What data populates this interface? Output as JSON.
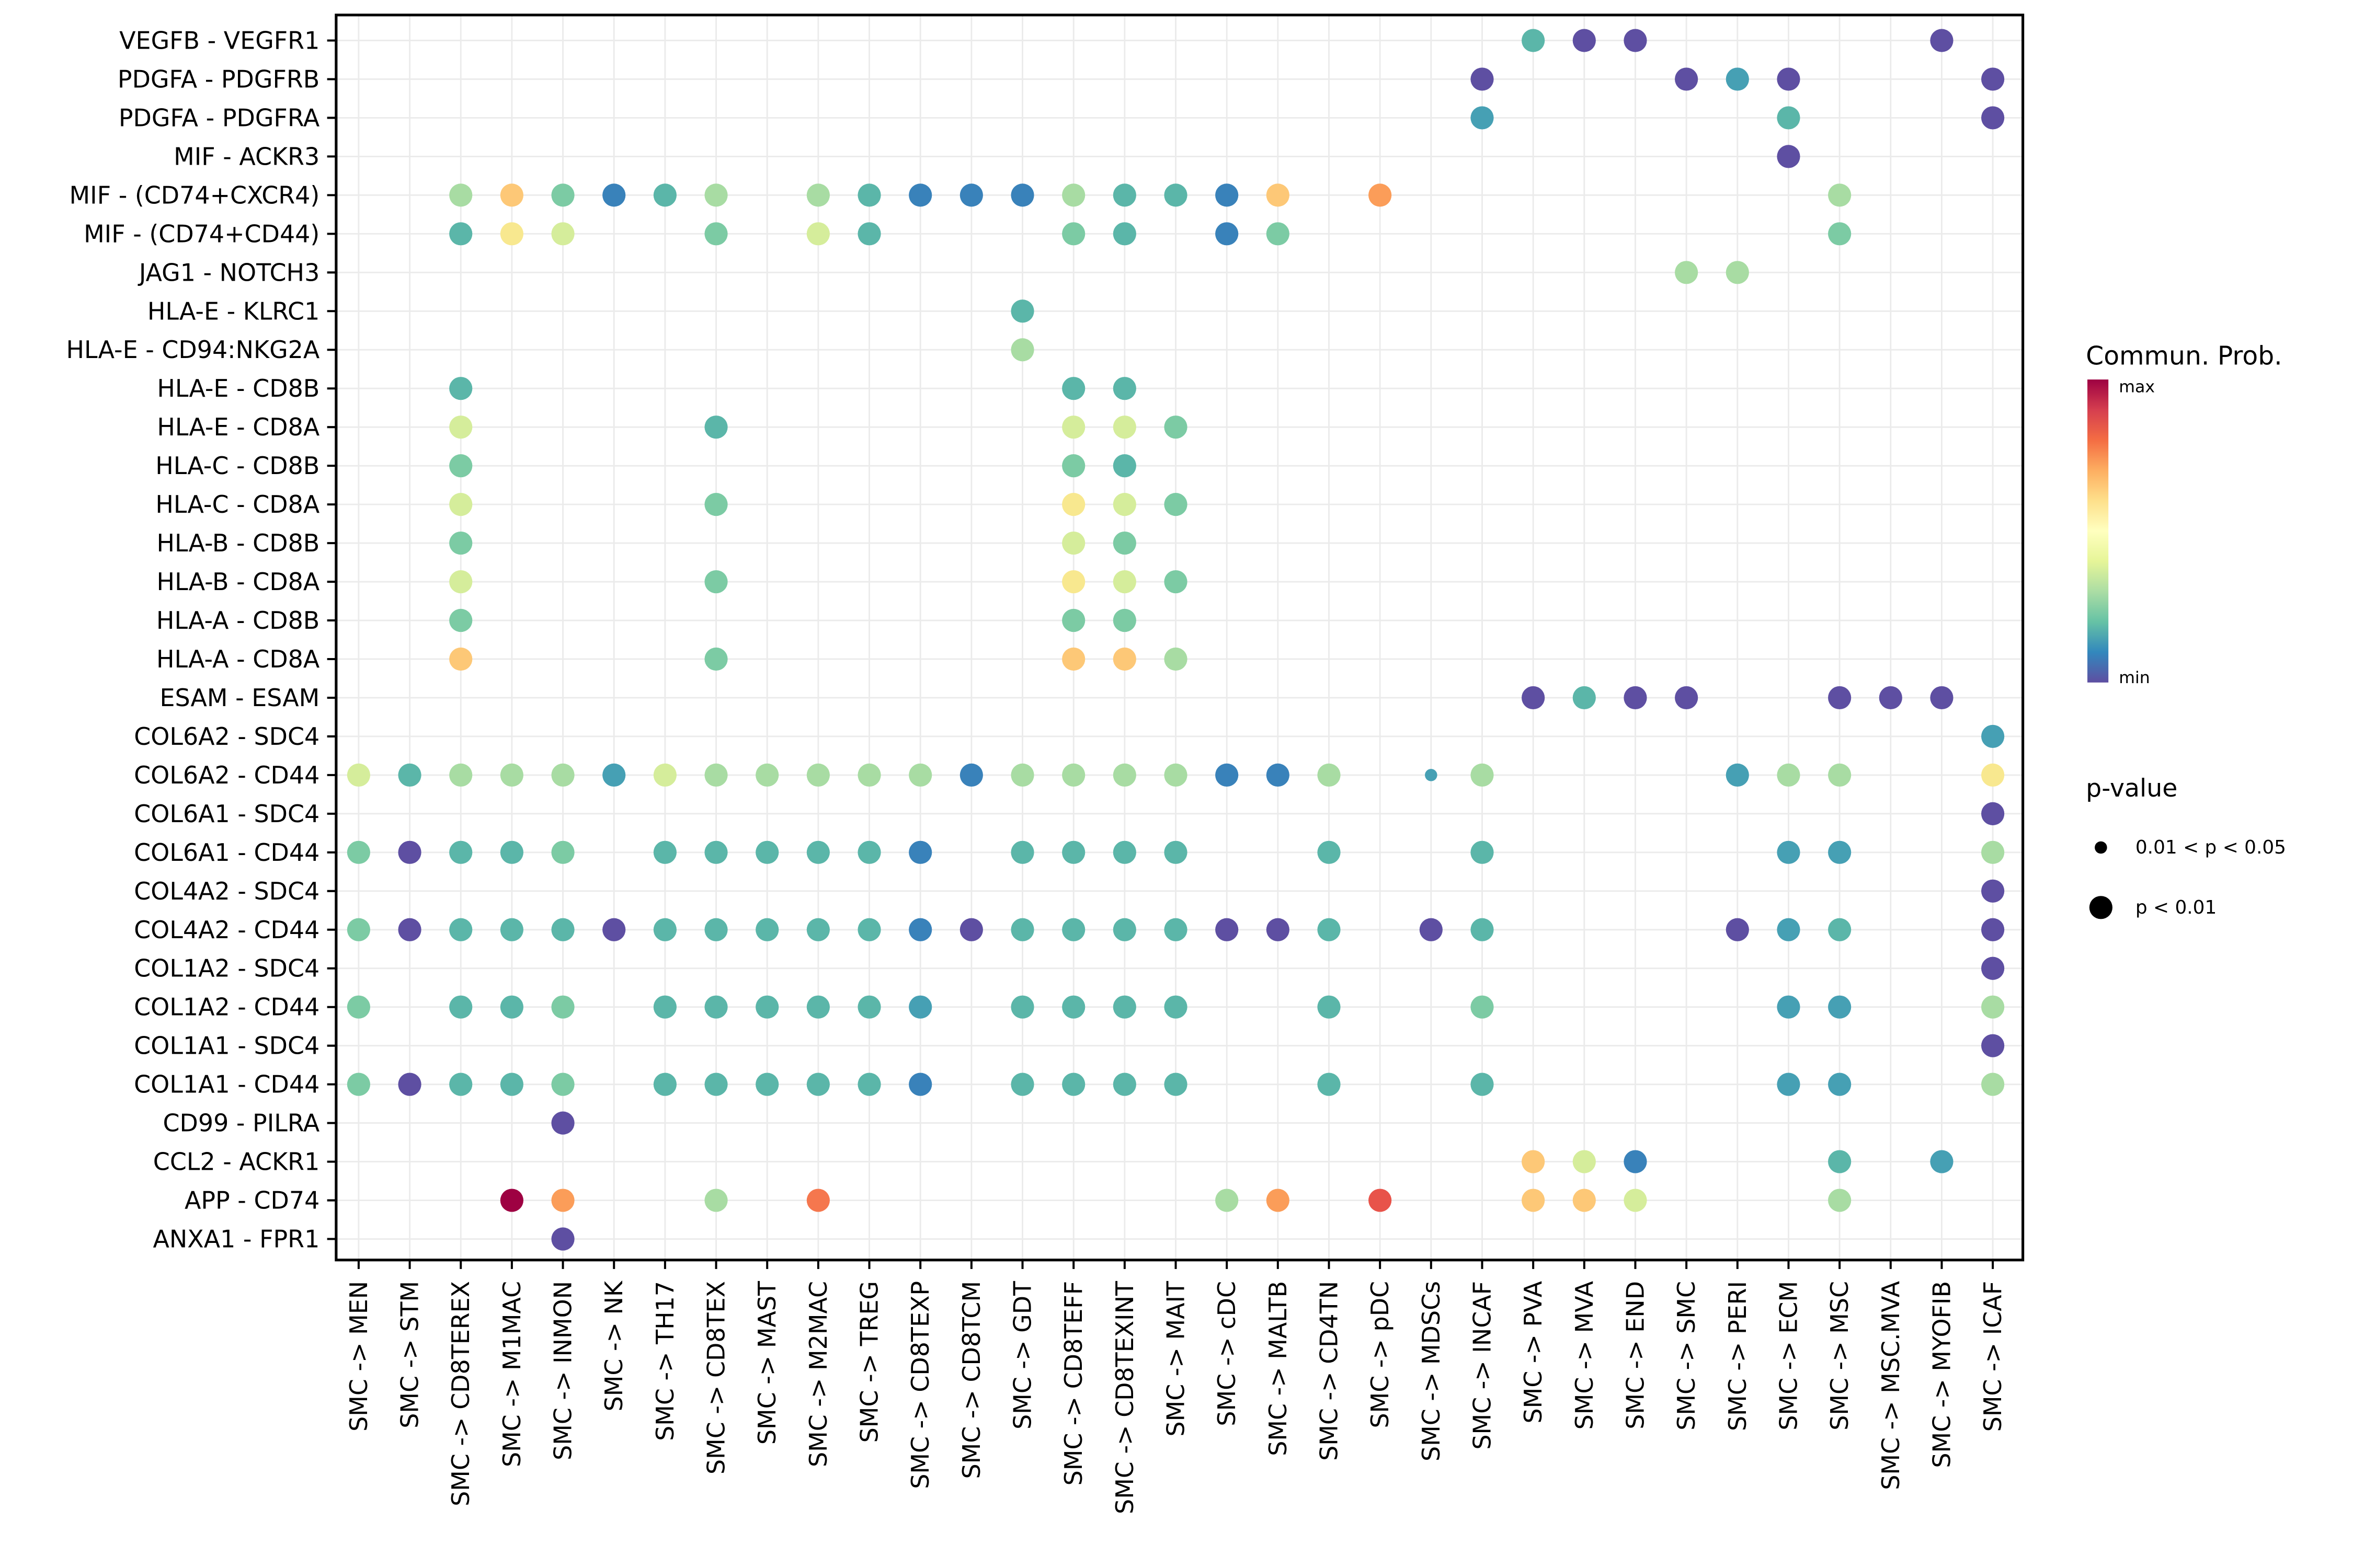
{
  "legend": {
    "colorbar": {
      "title": "Commun. Prob.",
      "max_label": "max",
      "min_label": "min",
      "colors_top_to_bottom": [
        "#9E0142",
        "#D53E4F",
        "#F46D43",
        "#FDAE61",
        "#FEE08B",
        "#FFFFBF",
        "#E6F598",
        "#ABDDA4",
        "#66C2A5",
        "#3288BD",
        "#5E4FA2"
      ]
    },
    "pvalue": {
      "title": "p-value",
      "items": [
        {
          "size": "small",
          "label": "0.01 < p < 0.05"
        },
        {
          "size": "large",
          "label": "p < 0.01"
        }
      ]
    }
  },
  "chart_data": {
    "type": "scatter",
    "subtype": "bubble_dotplot_cell_communication",
    "title": "",
    "xlabel": "",
    "ylabel": "",
    "layout": {
      "legend_position": "right",
      "grid": true,
      "x_tick_rotation": 90
    },
    "x_categories": [
      "SMC -> MEN",
      "SMC -> STM",
      "SMC -> CD8TEREX",
      "SMC -> M1MAC",
      "SMC -> INMON",
      "SMC -> NK",
      "SMC -> TH17",
      "SMC -> CD8TEX",
      "SMC -> MAST",
      "SMC -> M2MAC",
      "SMC -> TREG",
      "SMC -> CD8TEXP",
      "SMC -> CD8TCM",
      "SMC -> GDT",
      "SMC -> CD8TEFF",
      "SMC -> CD8TEXINT",
      "SMC -> MAIT",
      "SMC -> cDC",
      "SMC -> MALTB",
      "SMC -> CD4TN",
      "SMC -> pDC",
      "SMC -> MDSCs",
      "SMC -> INCAF",
      "SMC -> PVA",
      "SMC -> MVA",
      "SMC -> END",
      "SMC -> SMC",
      "SMC -> PERI",
      "SMC -> ECM",
      "SMC -> MSC",
      "SMC -> MSC.MVA",
      "SMC -> MYOFIB",
      "SMC -> ICAF"
    ],
    "y_categories": [
      "VEGFB - VEGFR1",
      "PDGFA - PDGFRB",
      "PDGFA - PDGFRA",
      "MIF - ACKR3",
      "MIF - (CD74+CXCR4)",
      "MIF - (CD74+CD44)",
      "JAG1 - NOTCH3",
      "HLA-E - KLRC1",
      "HLA-E - CD94:NKG2A",
      "HLA-E - CD8B",
      "HLA-E - CD8A",
      "HLA-C - CD8B",
      "HLA-C - CD8A",
      "HLA-B - CD8B",
      "HLA-B - CD8A",
      "HLA-A - CD8B",
      "HLA-A - CD8A",
      "ESAM - ESAM",
      "COL6A2 - SDC4",
      "COL6A2 - CD44",
      "COL6A1 - SDC4",
      "COL6A1 - CD44",
      "COL4A2 - SDC4",
      "COL4A2 - CD44",
      "COL1A2 - SDC4",
      "COL1A2 - CD44",
      "COL1A1 - SDC4",
      "COL1A1 - CD44",
      "CD99 - PILRA",
      "CCL2 - ACKR1",
      "APP - CD74",
      "ANXA1 - FPR1"
    ],
    "color_key": {
      "P": "#5E4FA2",
      "B": "#3982BA",
      "TB": "#46A0B4",
      "T": "#5BB6A9",
      "G": "#7CCBA4",
      "LG": "#A8DCA3",
      "YG": "#D5ED9B",
      "Y": "#F8E88F",
      "YO": "#FDC877",
      "O": "#FB9D59",
      "RO": "#F5774E",
      "R": "#E8534A",
      "DR": "#9E0142"
    },
    "color_scale": {
      "name": "Spectral reversed",
      "min_color": "#5E4FA2",
      "max_color": "#9E0142",
      "min_label": "min",
      "max_label": "max"
    },
    "size_key": {
      "L": "p < 0.01",
      "S": "0.01 < p < 0.05"
    },
    "points_format": "[y_index, x_index, color_key, size_key]",
    "points": [
      [
        0,
        23,
        "T",
        "L"
      ],
      [
        0,
        24,
        "P",
        "L"
      ],
      [
        0,
        25,
        "P",
        "L"
      ],
      [
        0,
        31,
        "P",
        "L"
      ],
      [
        1,
        22,
        "P",
        "L"
      ],
      [
        1,
        26,
        "P",
        "L"
      ],
      [
        1,
        27,
        "TB",
        "L"
      ],
      [
        1,
        28,
        "P",
        "L"
      ],
      [
        1,
        32,
        "P",
        "L"
      ],
      [
        2,
        22,
        "TB",
        "L"
      ],
      [
        2,
        28,
        "T",
        "L"
      ],
      [
        2,
        32,
        "P",
        "L"
      ],
      [
        3,
        28,
        "P",
        "L"
      ],
      [
        4,
        2,
        "LG",
        "L"
      ],
      [
        4,
        3,
        "YO",
        "L"
      ],
      [
        4,
        4,
        "G",
        "L"
      ],
      [
        4,
        5,
        "B",
        "L"
      ],
      [
        4,
        6,
        "T",
        "L"
      ],
      [
        4,
        7,
        "LG",
        "L"
      ],
      [
        4,
        9,
        "LG",
        "L"
      ],
      [
        4,
        10,
        "T",
        "L"
      ],
      [
        4,
        11,
        "B",
        "L"
      ],
      [
        4,
        12,
        "B",
        "L"
      ],
      [
        4,
        13,
        "B",
        "L"
      ],
      [
        4,
        14,
        "LG",
        "L"
      ],
      [
        4,
        15,
        "T",
        "L"
      ],
      [
        4,
        16,
        "T",
        "L"
      ],
      [
        4,
        17,
        "B",
        "L"
      ],
      [
        4,
        18,
        "YO",
        "L"
      ],
      [
        4,
        20,
        "O",
        "L"
      ],
      [
        4,
        29,
        "LG",
        "L"
      ],
      [
        5,
        2,
        "T",
        "L"
      ],
      [
        5,
        3,
        "Y",
        "L"
      ],
      [
        5,
        4,
        "YG",
        "L"
      ],
      [
        5,
        7,
        "G",
        "L"
      ],
      [
        5,
        9,
        "YG",
        "L"
      ],
      [
        5,
        10,
        "T",
        "L"
      ],
      [
        5,
        14,
        "G",
        "L"
      ],
      [
        5,
        15,
        "T",
        "L"
      ],
      [
        5,
        17,
        "B",
        "L"
      ],
      [
        5,
        18,
        "G",
        "L"
      ],
      [
        5,
        29,
        "G",
        "L"
      ],
      [
        6,
        26,
        "LG",
        "L"
      ],
      [
        6,
        27,
        "LG",
        "L"
      ],
      [
        7,
        13,
        "T",
        "L"
      ],
      [
        8,
        13,
        "LG",
        "L"
      ],
      [
        9,
        2,
        "T",
        "L"
      ],
      [
        9,
        14,
        "T",
        "L"
      ],
      [
        9,
        15,
        "T",
        "L"
      ],
      [
        10,
        2,
        "YG",
        "L"
      ],
      [
        10,
        7,
        "T",
        "L"
      ],
      [
        10,
        14,
        "YG",
        "L"
      ],
      [
        10,
        15,
        "YG",
        "L"
      ],
      [
        10,
        16,
        "G",
        "L"
      ],
      [
        11,
        2,
        "G",
        "L"
      ],
      [
        11,
        14,
        "G",
        "L"
      ],
      [
        11,
        15,
        "T",
        "L"
      ],
      [
        12,
        2,
        "YG",
        "L"
      ],
      [
        12,
        7,
        "G",
        "L"
      ],
      [
        12,
        14,
        "Y",
        "L"
      ],
      [
        12,
        15,
        "YG",
        "L"
      ],
      [
        12,
        16,
        "G",
        "L"
      ],
      [
        13,
        2,
        "G",
        "L"
      ],
      [
        13,
        14,
        "YG",
        "L"
      ],
      [
        13,
        15,
        "G",
        "L"
      ],
      [
        14,
        2,
        "YG",
        "L"
      ],
      [
        14,
        7,
        "G",
        "L"
      ],
      [
        14,
        14,
        "Y",
        "L"
      ],
      [
        14,
        15,
        "YG",
        "L"
      ],
      [
        14,
        16,
        "G",
        "L"
      ],
      [
        15,
        2,
        "G",
        "L"
      ],
      [
        15,
        14,
        "G",
        "L"
      ],
      [
        15,
        15,
        "G",
        "L"
      ],
      [
        16,
        2,
        "YO",
        "L"
      ],
      [
        16,
        7,
        "G",
        "L"
      ],
      [
        16,
        14,
        "YO",
        "L"
      ],
      [
        16,
        15,
        "YO",
        "L"
      ],
      [
        16,
        16,
        "LG",
        "L"
      ],
      [
        17,
        23,
        "P",
        "L"
      ],
      [
        17,
        24,
        "T",
        "L"
      ],
      [
        17,
        25,
        "P",
        "L"
      ],
      [
        17,
        26,
        "P",
        "L"
      ],
      [
        17,
        29,
        "P",
        "L"
      ],
      [
        17,
        30,
        "P",
        "L"
      ],
      [
        17,
        31,
        "P",
        "L"
      ],
      [
        18,
        32,
        "TB",
        "L"
      ],
      [
        19,
        0,
        "YG",
        "L"
      ],
      [
        19,
        1,
        "T",
        "L"
      ],
      [
        19,
        2,
        "LG",
        "L"
      ],
      [
        19,
        3,
        "LG",
        "L"
      ],
      [
        19,
        4,
        "LG",
        "L"
      ],
      [
        19,
        5,
        "TB",
        "L"
      ],
      [
        19,
        6,
        "YG",
        "L"
      ],
      [
        19,
        7,
        "LG",
        "L"
      ],
      [
        19,
        8,
        "LG",
        "L"
      ],
      [
        19,
        9,
        "LG",
        "L"
      ],
      [
        19,
        10,
        "LG",
        "L"
      ],
      [
        19,
        11,
        "LG",
        "L"
      ],
      [
        19,
        12,
        "B",
        "L"
      ],
      [
        19,
        13,
        "LG",
        "L"
      ],
      [
        19,
        14,
        "LG",
        "L"
      ],
      [
        19,
        15,
        "LG",
        "L"
      ],
      [
        19,
        16,
        "LG",
        "L"
      ],
      [
        19,
        17,
        "B",
        "L"
      ],
      [
        19,
        18,
        "B",
        "L"
      ],
      [
        19,
        19,
        "LG",
        "L"
      ],
      [
        19,
        21,
        "TB",
        "S"
      ],
      [
        19,
        22,
        "LG",
        "L"
      ],
      [
        19,
        27,
        "TB",
        "L"
      ],
      [
        19,
        28,
        "LG",
        "L"
      ],
      [
        19,
        29,
        "LG",
        "L"
      ],
      [
        19,
        32,
        "Y",
        "L"
      ],
      [
        20,
        32,
        "P",
        "L"
      ],
      [
        21,
        0,
        "G",
        "L"
      ],
      [
        21,
        1,
        "P",
        "L"
      ],
      [
        21,
        2,
        "T",
        "L"
      ],
      [
        21,
        3,
        "T",
        "L"
      ],
      [
        21,
        4,
        "G",
        "L"
      ],
      [
        21,
        6,
        "T",
        "L"
      ],
      [
        21,
        7,
        "T",
        "L"
      ],
      [
        21,
        8,
        "T",
        "L"
      ],
      [
        21,
        9,
        "T",
        "L"
      ],
      [
        21,
        10,
        "T",
        "L"
      ],
      [
        21,
        11,
        "B",
        "L"
      ],
      [
        21,
        13,
        "T",
        "L"
      ],
      [
        21,
        14,
        "T",
        "L"
      ],
      [
        21,
        15,
        "T",
        "L"
      ],
      [
        21,
        16,
        "T",
        "L"
      ],
      [
        21,
        19,
        "T",
        "L"
      ],
      [
        21,
        22,
        "T",
        "L"
      ],
      [
        21,
        28,
        "TB",
        "L"
      ],
      [
        21,
        29,
        "TB",
        "L"
      ],
      [
        21,
        32,
        "LG",
        "L"
      ],
      [
        22,
        32,
        "P",
        "L"
      ],
      [
        23,
        0,
        "G",
        "L"
      ],
      [
        23,
        1,
        "P",
        "L"
      ],
      [
        23,
        2,
        "T",
        "L"
      ],
      [
        23,
        3,
        "T",
        "L"
      ],
      [
        23,
        4,
        "T",
        "L"
      ],
      [
        23,
        5,
        "P",
        "L"
      ],
      [
        23,
        6,
        "T",
        "L"
      ],
      [
        23,
        7,
        "T",
        "L"
      ],
      [
        23,
        8,
        "T",
        "L"
      ],
      [
        23,
        9,
        "T",
        "L"
      ],
      [
        23,
        10,
        "T",
        "L"
      ],
      [
        23,
        11,
        "B",
        "L"
      ],
      [
        23,
        12,
        "P",
        "L"
      ],
      [
        23,
        13,
        "T",
        "L"
      ],
      [
        23,
        14,
        "T",
        "L"
      ],
      [
        23,
        15,
        "T",
        "L"
      ],
      [
        23,
        16,
        "T",
        "L"
      ],
      [
        23,
        17,
        "P",
        "L"
      ],
      [
        23,
        18,
        "P",
        "L"
      ],
      [
        23,
        19,
        "T",
        "L"
      ],
      [
        23,
        21,
        "P",
        "L"
      ],
      [
        23,
        22,
        "T",
        "L"
      ],
      [
        23,
        27,
        "P",
        "L"
      ],
      [
        23,
        28,
        "TB",
        "L"
      ],
      [
        23,
        29,
        "T",
        "L"
      ],
      [
        23,
        32,
        "P",
        "L"
      ],
      [
        24,
        32,
        "P",
        "L"
      ],
      [
        25,
        0,
        "G",
        "L"
      ],
      [
        25,
        2,
        "T",
        "L"
      ],
      [
        25,
        3,
        "T",
        "L"
      ],
      [
        25,
        4,
        "G",
        "L"
      ],
      [
        25,
        6,
        "T",
        "L"
      ],
      [
        25,
        7,
        "T",
        "L"
      ],
      [
        25,
        8,
        "T",
        "L"
      ],
      [
        25,
        9,
        "T",
        "L"
      ],
      [
        25,
        10,
        "T",
        "L"
      ],
      [
        25,
        11,
        "TB",
        "L"
      ],
      [
        25,
        13,
        "T",
        "L"
      ],
      [
        25,
        14,
        "T",
        "L"
      ],
      [
        25,
        15,
        "T",
        "L"
      ],
      [
        25,
        16,
        "T",
        "L"
      ],
      [
        25,
        19,
        "T",
        "L"
      ],
      [
        25,
        22,
        "G",
        "L"
      ],
      [
        25,
        28,
        "TB",
        "L"
      ],
      [
        25,
        29,
        "TB",
        "L"
      ],
      [
        25,
        32,
        "LG",
        "L"
      ],
      [
        26,
        32,
        "P",
        "L"
      ],
      [
        27,
        0,
        "G",
        "L"
      ],
      [
        27,
        1,
        "P",
        "L"
      ],
      [
        27,
        2,
        "T",
        "L"
      ],
      [
        27,
        3,
        "T",
        "L"
      ],
      [
        27,
        4,
        "G",
        "L"
      ],
      [
        27,
        6,
        "T",
        "L"
      ],
      [
        27,
        7,
        "T",
        "L"
      ],
      [
        27,
        8,
        "T",
        "L"
      ],
      [
        27,
        9,
        "T",
        "L"
      ],
      [
        27,
        10,
        "T",
        "L"
      ],
      [
        27,
        11,
        "B",
        "L"
      ],
      [
        27,
        13,
        "T",
        "L"
      ],
      [
        27,
        14,
        "T",
        "L"
      ],
      [
        27,
        15,
        "T",
        "L"
      ],
      [
        27,
        16,
        "T",
        "L"
      ],
      [
        27,
        19,
        "T",
        "L"
      ],
      [
        27,
        22,
        "T",
        "L"
      ],
      [
        27,
        28,
        "TB",
        "L"
      ],
      [
        27,
        29,
        "TB",
        "L"
      ],
      [
        27,
        32,
        "LG",
        "L"
      ],
      [
        28,
        4,
        "P",
        "L"
      ],
      [
        29,
        23,
        "YO",
        "L"
      ],
      [
        29,
        24,
        "YG",
        "L"
      ],
      [
        29,
        25,
        "B",
        "L"
      ],
      [
        29,
        29,
        "T",
        "L"
      ],
      [
        29,
        31,
        "TB",
        "L"
      ],
      [
        30,
        3,
        "DR",
        "L"
      ],
      [
        30,
        4,
        "O",
        "L"
      ],
      [
        30,
        7,
        "LG",
        "L"
      ],
      [
        30,
        9,
        "RO",
        "L"
      ],
      [
        30,
        17,
        "LG",
        "L"
      ],
      [
        30,
        18,
        "O",
        "L"
      ],
      [
        30,
        20,
        "R",
        "L"
      ],
      [
        30,
        23,
        "YO",
        "L"
      ],
      [
        30,
        24,
        "YO",
        "L"
      ],
      [
        30,
        25,
        "YG",
        "L"
      ],
      [
        30,
        29,
        "LG",
        "L"
      ],
      [
        31,
        4,
        "P",
        "L"
      ]
    ]
  }
}
